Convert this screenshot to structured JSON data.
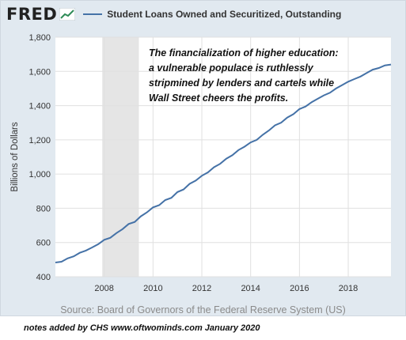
{
  "header": {
    "logo_text": "FRED",
    "logo_icon": "line-chart-icon"
  },
  "chart_data": {
    "type": "line",
    "title": "",
    "xlabel": "",
    "ylabel": "Billions of Dollars",
    "xlim": [
      2006.0,
      2019.75
    ],
    "ylim": [
      400,
      1800
    ],
    "x_ticks": [
      "2008",
      "2010",
      "2012",
      "2014",
      "2016",
      "2018"
    ],
    "y_ticks": [
      "400",
      "600",
      "800",
      "1,000",
      "1,200",
      "1,400",
      "1,600",
      "1,800"
    ],
    "recession_band": [
      2007.92,
      2009.42
    ],
    "grid": true,
    "legend_position": "top",
    "series": [
      {
        "name": "Student Loans Owned and Securitized, Outstanding",
        "color": "#4572a7",
        "x": [
          2006.0,
          2006.25,
          2006.5,
          2006.75,
          2007.0,
          2007.25,
          2007.5,
          2007.75,
          2008.0,
          2008.25,
          2008.5,
          2008.75,
          2009.0,
          2009.25,
          2009.5,
          2009.75,
          2010.0,
          2010.25,
          2010.5,
          2010.75,
          2011.0,
          2011.25,
          2011.5,
          2011.75,
          2012.0,
          2012.25,
          2012.5,
          2012.75,
          2013.0,
          2013.25,
          2013.5,
          2013.75,
          2014.0,
          2014.25,
          2014.5,
          2014.75,
          2015.0,
          2015.25,
          2015.5,
          2015.75,
          2016.0,
          2016.25,
          2016.5,
          2016.75,
          2017.0,
          2017.25,
          2017.5,
          2017.75,
          2018.0,
          2018.25,
          2018.5,
          2018.75,
          2019.0,
          2019.25,
          2019.5,
          2019.75
        ],
        "values": [
          483,
          488,
          507,
          519,
          540,
          553,
          571,
          590,
          616,
          628,
          655,
          678,
          708,
          720,
          753,
          776,
          805,
          818,
          848,
          861,
          895,
          910,
          943,
          962,
          990,
          1010,
          1040,
          1060,
          1090,
          1110,
          1140,
          1160,
          1185,
          1200,
          1230,
          1255,
          1285,
          1300,
          1330,
          1350,
          1380,
          1395,
          1420,
          1440,
          1460,
          1475,
          1500,
          1520,
          1540,
          1555,
          1570,
          1590,
          1610,
          1620,
          1635,
          1640
        ]
      }
    ],
    "annotation": [
      "The financialization of higher education:",
      "a vulnerable populace is ruthlessly",
      "stripmined by lenders and cartels while",
      "Wall Street cheers the profits."
    ]
  },
  "footer": {
    "source": "Source: Board of Governors of the Federal Reserve System (US)",
    "notes": "notes added by CHS   www.oftwominds.com   January 2020"
  }
}
